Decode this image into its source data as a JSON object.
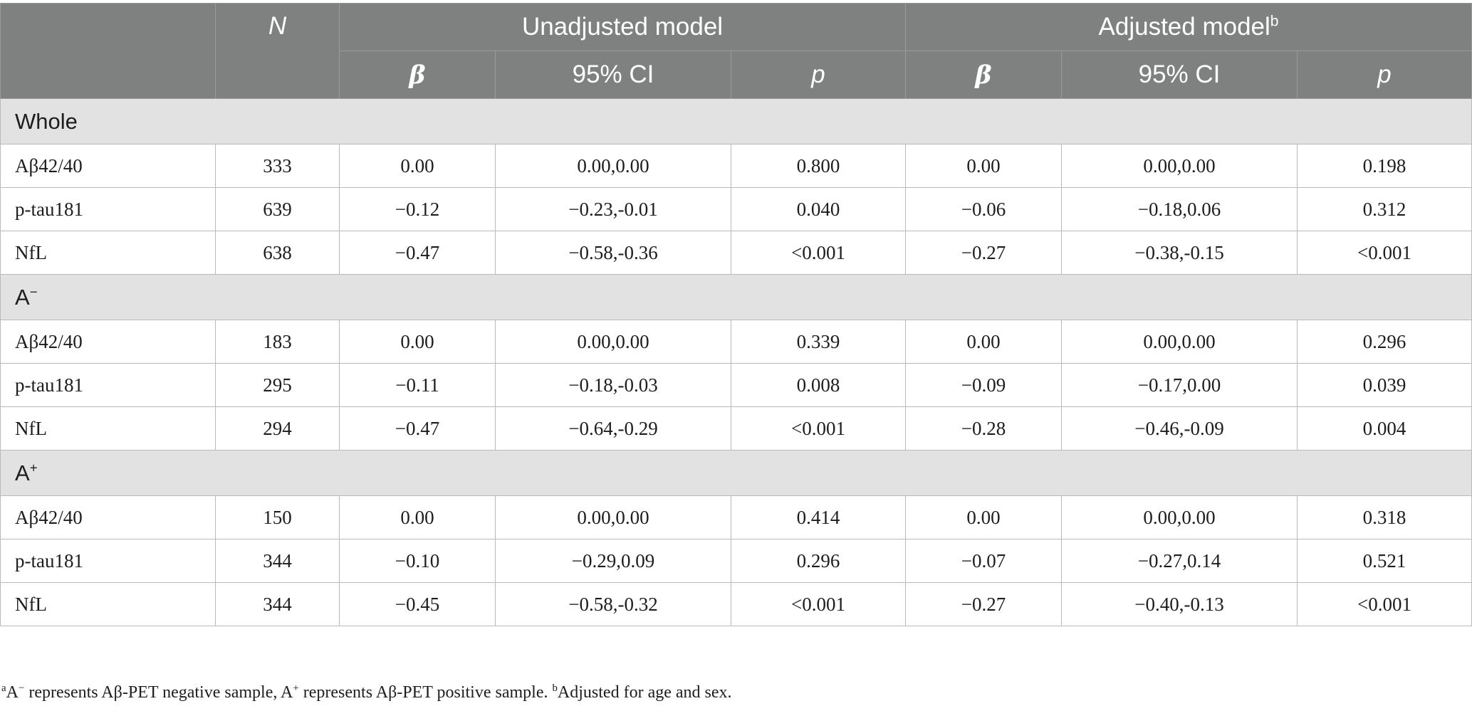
{
  "header": {
    "n_label": "N",
    "unadjusted_label": "Unadjusted model",
    "adjusted_label": "Adjusted model",
    "adjusted_sup": "b",
    "beta_label": "β",
    "ci_label": "95% CI",
    "p_label": "p"
  },
  "sections": [
    {
      "title": "Whole",
      "title_sup": "",
      "rows": [
        {
          "label": "Aβ42/40",
          "n": "333",
          "u_beta": "0.00",
          "u_ci": "0.00,0.00",
          "u_p": "0.800",
          "a_beta": "0.00",
          "a_ci": "0.00,0.00",
          "a_p": "0.198"
        },
        {
          "label": "p-tau181",
          "n": "639",
          "u_beta": "−0.12",
          "u_ci": "−0.23,-0.01",
          "u_p": "0.040",
          "a_beta": "−0.06",
          "a_ci": "−0.18,0.06",
          "a_p": "0.312"
        },
        {
          "label": "NfL",
          "n": "638",
          "u_beta": "−0.47",
          "u_ci": "−0.58,-0.36",
          "u_p": "<0.001",
          "a_beta": "−0.27",
          "a_ci": "−0.38,-0.15",
          "a_p": "<0.001"
        }
      ]
    },
    {
      "title": "A",
      "title_sup": "−",
      "rows": [
        {
          "label": "Aβ42/40",
          "n": "183",
          "u_beta": "0.00",
          "u_ci": "0.00,0.00",
          "u_p": "0.339",
          "a_beta": "0.00",
          "a_ci": "0.00,0.00",
          "a_p": "0.296"
        },
        {
          "label": "p-tau181",
          "n": "295",
          "u_beta": "−0.11",
          "u_ci": "−0.18,-0.03",
          "u_p": "0.008",
          "a_beta": "−0.09",
          "a_ci": "−0.17,0.00",
          "a_p": "0.039"
        },
        {
          "label": "NfL",
          "n": "294",
          "u_beta": "−0.47",
          "u_ci": "−0.64,-0.29",
          "u_p": "<0.001",
          "a_beta": "−0.28",
          "a_ci": "−0.46,-0.09",
          "a_p": "0.004"
        }
      ]
    },
    {
      "title": "A",
      "title_sup": "+",
      "rows": [
        {
          "label": "Aβ42/40",
          "n": "150",
          "u_beta": "0.00",
          "u_ci": "0.00,0.00",
          "u_p": "0.414",
          "a_beta": "0.00",
          "a_ci": "0.00,0.00",
          "a_p": "0.318"
        },
        {
          "label": "p-tau181",
          "n": "344",
          "u_beta": "−0.10",
          "u_ci": "−0.29,0.09",
          "u_p": "0.296",
          "a_beta": "−0.07",
          "a_ci": "−0.27,0.14",
          "a_p": "0.521"
        },
        {
          "label": "NfL",
          "n": "344",
          "u_beta": "−0.45",
          "u_ci": "−0.58,-0.32",
          "u_p": "<0.001",
          "a_beta": "−0.27",
          "a_ci": "−0.40,-0.13",
          "a_p": "<0.001"
        }
      ]
    }
  ],
  "footnote": {
    "sup_a": "a",
    "part1_a": "A",
    "part1_sup": "−",
    "part1_text": " represents Aβ-PET negative sample, ",
    "part2_a": "A",
    "part2_sup": "+",
    "part2_text": " represents Aβ-PET positive sample. ",
    "sup_b": "b",
    "part3_text": "Adjusted for age and sex."
  }
}
